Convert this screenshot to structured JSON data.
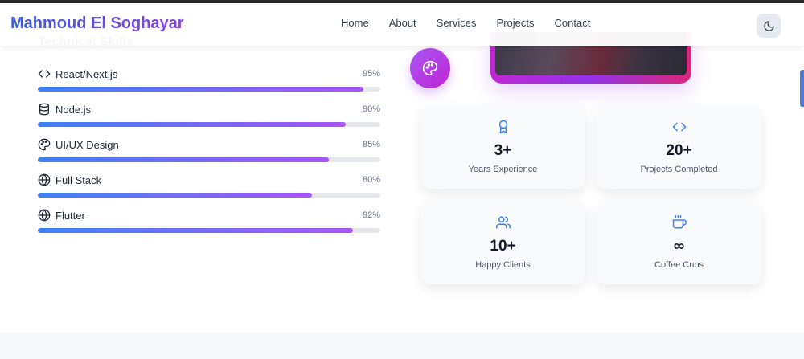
{
  "brand": {
    "name": "Mahmoud El Soghayar"
  },
  "nav": {
    "links": [
      "Home",
      "About",
      "Services",
      "Projects",
      "Contact"
    ]
  },
  "theme_toggle": {
    "icon": "moon-icon"
  },
  "skills": {
    "heading": "Technical Skills",
    "items": [
      {
        "label": "React/Next.js",
        "percent_label": "95%",
        "value": 95,
        "icon": "code-icon"
      },
      {
        "label": "Node.js",
        "percent_label": "90%",
        "value": 90,
        "icon": "database-icon"
      },
      {
        "label": "UI/UX Design",
        "percent_label": "85%",
        "value": 85,
        "icon": "palette-icon"
      },
      {
        "label": "Full Stack",
        "percent_label": "80%",
        "value": 80,
        "icon": "globe-icon"
      },
      {
        "label": "Flutter",
        "percent_label": "92%",
        "value": 92,
        "icon": "globe-icon"
      }
    ]
  },
  "stats": [
    {
      "value": "3+",
      "label": "Years Experience",
      "icon": "award-icon"
    },
    {
      "value": "20+",
      "label": "Projects Completed",
      "icon": "code-icon"
    },
    {
      "value": "10+",
      "label": "Happy Clients",
      "icon": "users-icon"
    },
    {
      "value": "∞",
      "label": "Coffee Cups",
      "icon": "coffee-icon"
    }
  ],
  "colors": {
    "accent_start": "#3b82f6",
    "accent_end": "#a855f7",
    "icon_blue": "#3b82f6"
  }
}
